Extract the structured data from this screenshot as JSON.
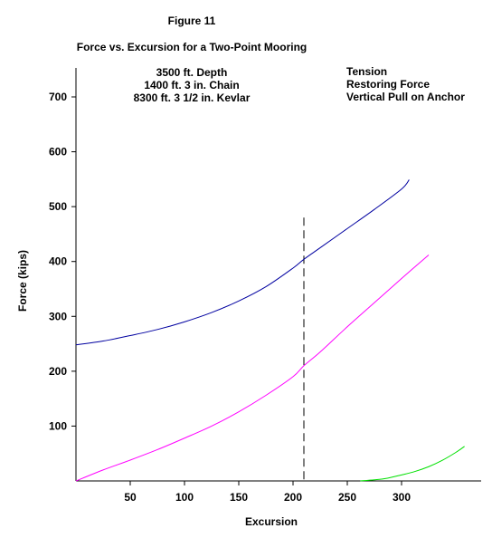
{
  "chart_data": {
    "type": "line",
    "figure_label": "Figure 11",
    "title": "Force vs. Excursion for a Two-Point Mooring",
    "subtitle_lines": [
      "3500 ft. Depth",
      "1400 ft.  3 in. Chain",
      "8300 ft.  3 1/2 in. Kevlar"
    ],
    "xlabel": "Excursion",
    "ylabel": "Force (kips)",
    "xlim": [
      0,
      360
    ],
    "ylim": [
      0,
      760
    ],
    "xticks": [
      50,
      100,
      150,
      200,
      250,
      300
    ],
    "yticks": [
      100,
      200,
      300,
      400,
      500,
      600,
      700
    ],
    "xtick_labels": [
      "50",
      "100",
      "150",
      "200",
      "250",
      "300"
    ],
    "ytick_labels": [
      "100",
      "200",
      "300",
      "400",
      "500",
      "600",
      "700"
    ],
    "reference_line": {
      "x": 210,
      "y_top": 480,
      "style": "dashed"
    },
    "grid": false,
    "legend_position": "top-right",
    "series": [
      {
        "name": "Tension",
        "color": "#0000a0",
        "x": [
          0,
          25,
          50,
          75,
          100,
          125,
          150,
          175,
          200,
          210,
          225,
          250,
          275,
          300,
          307
        ],
        "y": [
          248,
          255,
          265,
          276,
          290,
          307,
          328,
          354,
          388,
          404,
          425,
          460,
          495,
          532,
          549
        ]
      },
      {
        "name": "Restoring Force",
        "color": "#ff00ff",
        "x": [
          0,
          25,
          50,
          75,
          100,
          125,
          150,
          175,
          200,
          210,
          225,
          250,
          275,
          300,
          325
        ],
        "y": [
          0,
          20,
          38,
          57,
          78,
          100,
          126,
          156,
          190,
          210,
          235,
          281,
          325,
          369,
          412
        ]
      },
      {
        "name": "Vertical Pull on Anchor",
        "color": "#00e000",
        "x": [
          262,
          275,
          287,
          300,
          312,
          325,
          337,
          350,
          358
        ],
        "y": [
          0,
          2,
          5,
          11,
          17,
          26,
          37,
          52,
          63
        ]
      }
    ]
  }
}
